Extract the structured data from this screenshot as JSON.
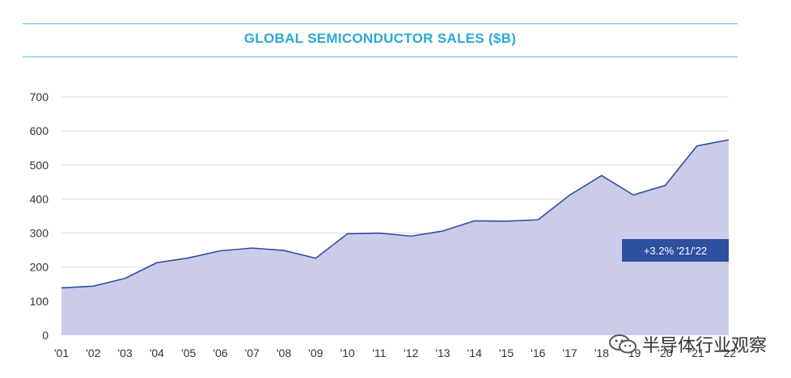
{
  "header": {
    "title": "GLOBAL SEMICONDUCTOR SALES ($B)"
  },
  "colors": {
    "title": "#2ba8d8",
    "rule": "#5bb9d6",
    "fill": "#cbcce9",
    "line": "#2f4f9f",
    "grid": "#dcdcdc",
    "annotation_bg": "#2f4f9f"
  },
  "watermark": {
    "text": "半导体行业观察",
    "icon": "wechat-icon"
  },
  "chart_data": {
    "type": "area",
    "title": "GLOBAL SEMICONDUCTOR SALES ($B)",
    "xlabel": "",
    "ylabel": "",
    "categories": [
      "'01",
      "'02",
      "'03",
      "'04",
      "'05",
      "'06",
      "'07",
      "'08",
      "'09",
      "'10",
      "'11",
      "'12",
      "'13",
      "'14",
      "'15",
      "'16",
      "'17",
      "'18",
      "'19",
      "'20",
      "'21",
      "'22"
    ],
    "values": [
      139,
      144,
      167,
      213,
      227,
      248,
      256,
      249,
      226,
      298,
      300,
      291,
      306,
      336,
      335,
      339,
      412,
      469,
      412,
      440,
      556,
      574
    ],
    "y_ticks": [
      "0",
      "100",
      "200",
      "300",
      "400",
      "500",
      "600",
      "700"
    ],
    "ylim": [
      0,
      700
    ],
    "grid": true,
    "legend": "none",
    "annotation": "+3.2% '21/'22"
  }
}
